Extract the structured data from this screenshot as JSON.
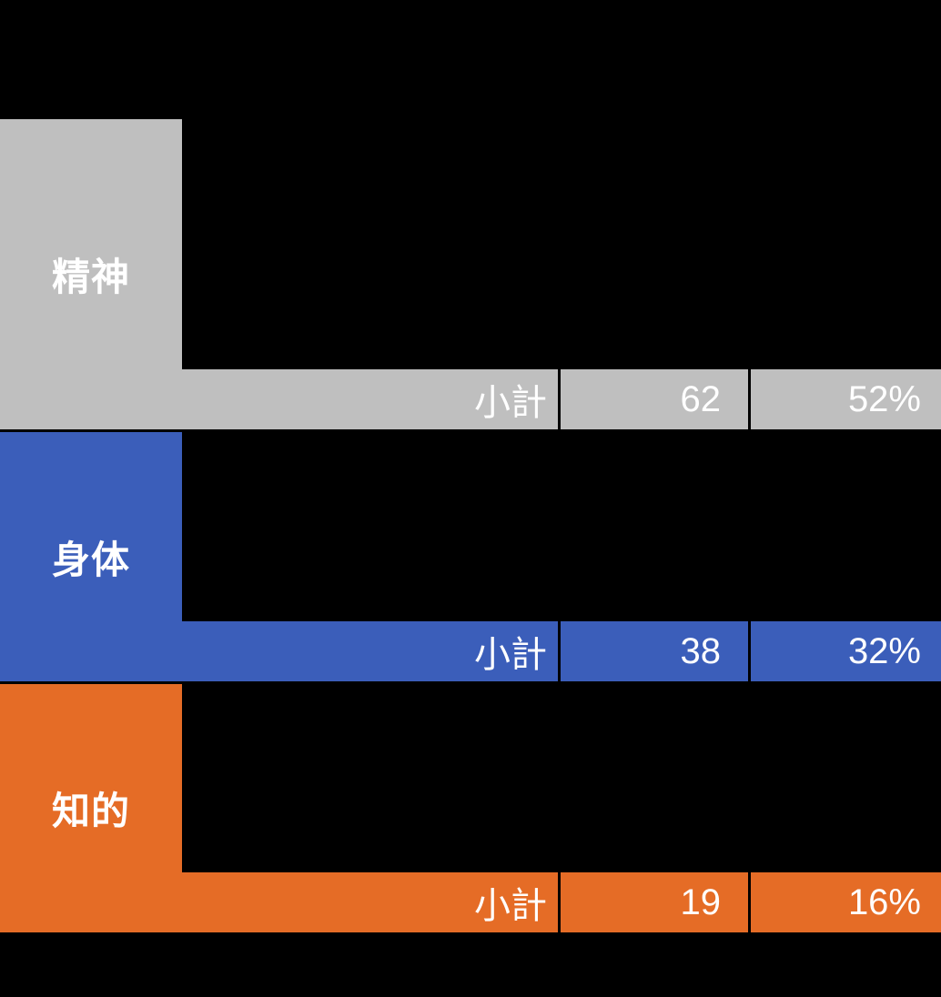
{
  "page": {
    "background": "#000000",
    "text_color": "#FFFFFF"
  },
  "table": {
    "subtotal_label": "小計",
    "columns": [
      "category",
      "subtotal_label",
      "count",
      "percent"
    ],
    "sections": [
      {
        "key": "seishin",
        "label": "精神",
        "color": "#BFBFBF",
        "count": "62",
        "percent": "52%"
      },
      {
        "key": "shintai",
        "label": "身体",
        "color": "#3B5EBA",
        "count": "38",
        "percent": "32%"
      },
      {
        "key": "chiteki",
        "label": "知的",
        "color": "#E56C26",
        "count": "19",
        "percent": "16%"
      }
    ]
  }
}
